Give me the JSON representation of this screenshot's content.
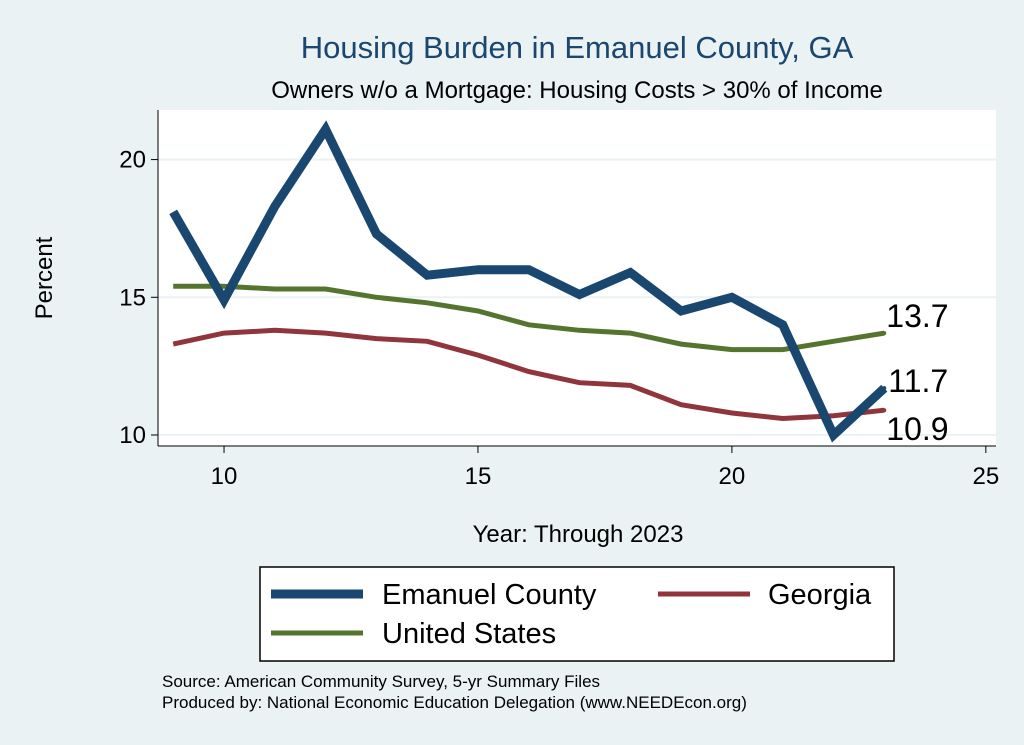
{
  "chart_data": {
    "type": "line",
    "title": "Housing Burden in Emanuel County, GA",
    "subtitle": "Owners w/o a Mortgage: Housing Costs > 30% of Income",
    "xlabel": "Year: Through 2023",
    "ylabel": "Percent",
    "xlim": [
      8.7,
      25.2
    ],
    "ylim": [
      9.6,
      21.8
    ],
    "xticks": [
      10,
      15,
      20,
      25
    ],
    "yticks": [
      10,
      15,
      20
    ],
    "grid": true,
    "legend_position": "bottom",
    "x": [
      9,
      10,
      11,
      12,
      13,
      14,
      15,
      16,
      17,
      18,
      19,
      20,
      21,
      22,
      23
    ],
    "series": [
      {
        "name": "Emanuel County",
        "color": "#1a476f",
        "values": [
          18.1,
          14.9,
          18.3,
          21.1,
          17.3,
          15.8,
          16.0,
          16.0,
          15.1,
          15.9,
          14.5,
          15.0,
          14.0,
          10.0,
          11.7
        ],
        "end_label": "11.7"
      },
      {
        "name": "Georgia",
        "color": "#90353b",
        "values": [
          13.3,
          13.7,
          13.8,
          13.7,
          13.5,
          13.4,
          12.9,
          12.3,
          11.9,
          11.8,
          11.1,
          10.8,
          10.6,
          10.7,
          10.9
        ],
        "end_label": "10.9"
      },
      {
        "name": "United States",
        "color": "#55752f",
        "values": [
          15.4,
          15.4,
          15.3,
          15.3,
          15.0,
          14.8,
          14.5,
          14.0,
          13.8,
          13.7,
          13.3,
          13.1,
          13.1,
          13.4,
          13.7
        ],
        "end_label": "13.7"
      }
    ]
  },
  "source_line1": "Source: American Community Survey, 5-yr Summary Files",
  "source_line2": "Produced by: National Economic Education Delegation (www.NEEDEcon.org)"
}
